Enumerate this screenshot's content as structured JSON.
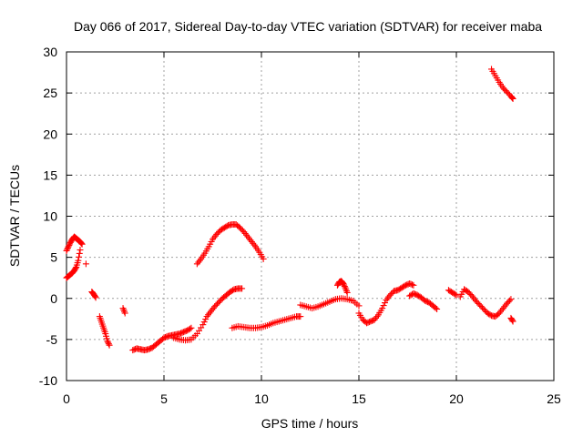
{
  "chart_data": {
    "type": "scatter",
    "title": "Day 066 of 2017, Sidereal Day-to-day VTEC variation (SDTVAR) for receiver maba",
    "xlabel": "GPS time / hours",
    "ylabel": "SDTVAR / TECUs",
    "xlim": [
      0,
      25
    ],
    "ylim": [
      -10,
      30
    ],
    "xticks": [
      "0",
      "5",
      "10",
      "15",
      "20",
      "25"
    ],
    "yticks": [
      "-10",
      "-5",
      "0",
      "5",
      "10",
      "15",
      "20",
      "25",
      "30"
    ],
    "grid": true,
    "marker": "+",
    "series": [
      {
        "name": "SDTVAR",
        "color": "#ff0000",
        "segments": [
          {
            "x": [
              0.0,
              0.1,
              0.2,
              0.3,
              0.4,
              0.5,
              0.6,
              0.7,
              0.8
            ],
            "y": [
              5.8,
              6.3,
              6.8,
              7.2,
              7.5,
              7.3,
              7.1,
              6.9,
              6.6
            ]
          },
          {
            "x": [
              0.0,
              0.1,
              0.2,
              0.3,
              0.4,
              0.5,
              0.6,
              0.7
            ],
            "y": [
              2.5,
              2.7,
              2.9,
              3.1,
              3.4,
              3.8,
              4.6,
              5.9
            ]
          },
          {
            "x": [
              1.0
            ],
            "y": [
              4.2
            ]
          },
          {
            "x": [
              1.3,
              1.4,
              1.5
            ],
            "y": [
              0.8,
              0.5,
              0.1
            ]
          },
          {
            "x": [
              1.7,
              1.8,
              1.9,
              2.0,
              2.1,
              2.2
            ],
            "y": [
              -2.2,
              -2.9,
              -3.6,
              -4.3,
              -5.2,
              -5.7
            ]
          },
          {
            "x": [
              2.9,
              3.0
            ],
            "y": [
              -1.2,
              -1.8
            ]
          },
          {
            "x": [
              3.4,
              3.6,
              3.8,
              4.0,
              4.2,
              4.4,
              4.6,
              4.8,
              5.0,
              5.2,
              5.4,
              5.6,
              5.8,
              6.0,
              6.2,
              6.4
            ],
            "y": [
              -6.3,
              -6.1,
              -6.2,
              -6.3,
              -6.2,
              -6.0,
              -5.6,
              -5.2,
              -4.8,
              -4.6,
              -4.5,
              -4.4,
              -4.3,
              -4.1,
              -3.9,
              -3.6
            ]
          },
          {
            "x": [
              5.5,
              5.8,
              6.1,
              6.4,
              6.7,
              7.0,
              7.2,
              7.4,
              7.6,
              7.8,
              8.0,
              8.2,
              8.4,
              8.6,
              8.8,
              9.0
            ],
            "y": [
              -4.8,
              -5.0,
              -5.1,
              -5.0,
              -4.3,
              -3.2,
              -2.2,
              -1.6,
              -1.0,
              -0.5,
              0.0,
              0.4,
              0.8,
              1.1,
              1.2,
              1.2
            ]
          },
          {
            "x": [
              6.7,
              6.9,
              7.1,
              7.3,
              7.5,
              7.7,
              7.9,
              8.1,
              8.3,
              8.5,
              8.7,
              8.9,
              9.1,
              9.3,
              9.5,
              9.7,
              9.9,
              10.1
            ],
            "y": [
              4.2,
              4.8,
              5.5,
              6.3,
              7.2,
              7.8,
              8.3,
              8.6,
              8.9,
              9.0,
              9.0,
              8.6,
              8.1,
              7.5,
              6.9,
              6.3,
              5.6,
              4.8
            ]
          },
          {
            "x": [
              8.5,
              8.8,
              9.1,
              9.4,
              9.7,
              10.0,
              10.3,
              10.6,
              10.9,
              11.2,
              11.5,
              11.8,
              12.0
            ],
            "y": [
              -3.6,
              -3.4,
              -3.5,
              -3.6,
              -3.6,
              -3.5,
              -3.3,
              -3.0,
              -2.8,
              -2.6,
              -2.4,
              -2.2,
              -2.2
            ]
          },
          {
            "x": [
              12.0,
              12.3,
              12.6,
              12.9,
              13.2,
              13.5,
              13.8,
              14.1,
              14.4,
              14.7,
              15.0
            ],
            "y": [
              -0.8,
              -1.0,
              -1.2,
              -1.0,
              -0.7,
              -0.4,
              -0.1,
              0.0,
              -0.1,
              -0.3,
              -0.9
            ]
          },
          {
            "x": [
              13.9,
              14.0,
              14.1,
              14.2,
              14.3,
              14.4
            ],
            "y": [
              1.6,
              2.0,
              2.1,
              1.8,
              1.3,
              0.7
            ]
          },
          {
            "x": [
              15.0,
              15.2,
              15.4,
              15.6,
              15.8,
              16.0,
              16.2,
              16.4,
              16.6,
              16.8,
              17.0,
              17.2,
              17.4,
              17.6,
              17.8
            ],
            "y": [
              -1.8,
              -2.6,
              -3.0,
              -2.8,
              -2.6,
              -2.0,
              -1.2,
              -0.2,
              0.4,
              0.9,
              1.0,
              1.3,
              1.6,
              1.8,
              1.6
            ]
          },
          {
            "x": [
              17.6,
              17.8,
              18.0,
              18.2,
              18.4,
              18.6,
              18.8,
              19.0
            ],
            "y": [
              0.3,
              0.6,
              0.4,
              0.1,
              -0.3,
              -0.5,
              -0.9,
              -1.3
            ]
          },
          {
            "x": [
              19.6,
              19.8,
              20.0
            ],
            "y": [
              1.0,
              0.7,
              0.4
            ]
          },
          {
            "x": [
              20.2,
              20.4,
              20.6,
              20.8,
              21.0,
              21.2,
              21.4,
              21.6,
              21.8,
              22.0,
              22.2,
              22.4,
              22.6,
              22.8
            ],
            "y": [
              0.2,
              1.1,
              0.8,
              0.3,
              -0.3,
              -0.8,
              -1.3,
              -1.8,
              -2.1,
              -2.2,
              -1.8,
              -1.2,
              -0.6,
              -0.1
            ]
          },
          {
            "x": [
              22.8,
              22.9
            ],
            "y": [
              -2.4,
              -2.8
            ]
          },
          {
            "x": [
              21.8,
              22.0,
              22.2,
              22.4,
              22.6,
              22.8,
              22.9
            ],
            "y": [
              27.9,
              27.1,
              26.3,
              25.6,
              25.1,
              24.6,
              24.3
            ]
          }
        ]
      }
    ]
  }
}
